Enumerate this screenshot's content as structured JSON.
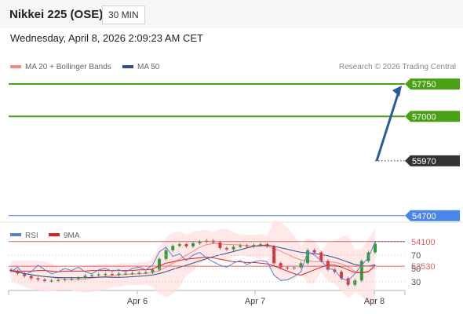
{
  "header": {
    "title": "Nikkei 225 (OSE)",
    "timeframe": "30 MIN"
  },
  "timestamp": "Wednesday, April 8, 2026 2:09:23 AM CET",
  "credit": "Research © 2026 Trading Central",
  "legend": [
    {
      "label": "MA 20 + Bollinger Bands",
      "color": "#f28b82"
    },
    {
      "label": "MA 50",
      "color": "#2d4f8a"
    }
  ],
  "rsi_legend": [
    {
      "label": "RSI",
      "color": "#5b7fd4"
    },
    {
      "label": "9MA",
      "color": "#e02020"
    }
  ],
  "colors": {
    "resistance": "#4aa116",
    "pivot": "#4a86e8",
    "support": "#e06666",
    "target_arrow": "#2a5aa0",
    "last_price": "#333333"
  },
  "chart_data": [
    {
      "type": "candlestick",
      "title": "Nikkei 225 (OSE)",
      "timeframe": "30 MIN",
      "x_ticks": [
        "Apr 6",
        "Apr 7",
        "Apr 8"
      ],
      "levels": [
        {
          "label": "57750",
          "value": 57750,
          "role": "resistance"
        },
        {
          "label": "57000",
          "value": 57000,
          "role": "resistance"
        },
        {
          "label": "55970",
          "value": 55970,
          "role": "last_price"
        },
        {
          "label": "54700",
          "value": 54700,
          "role": "pivot"
        },
        {
          "label": "54100",
          "value": 54100,
          "role": "support"
        },
        {
          "label": "53530",
          "value": 53530,
          "role": "support"
        }
      ],
      "price_close_approx": [
        53420,
        53360,
        53300,
        53250,
        53220,
        53190,
        53200,
        53210,
        53230,
        53240,
        53260,
        53310,
        53320,
        53340,
        53350,
        53330,
        53360,
        53360,
        53370,
        53380,
        53390,
        53450,
        53700,
        53900,
        54000,
        54040,
        53990,
        54060,
        54100,
        54120,
        54080,
        53950,
        53920,
        53980,
        54010,
        53990,
        54020,
        54040,
        53990,
        53600,
        53500,
        53480,
        53500,
        53600,
        53900,
        53850,
        53650,
        53450,
        53400,
        53250,
        53100,
        53200,
        53650,
        53850,
        54050
      ],
      "target": 57750
    },
    {
      "type": "line",
      "title": "RSI",
      "series": [
        {
          "name": "RSI",
          "values": [
            45,
            52,
            40,
            45,
            55,
            48,
            42,
            45,
            50,
            47,
            52,
            45,
            42,
            48,
            50,
            46,
            48,
            45,
            50,
            52,
            48,
            55,
            75,
            82,
            68,
            72,
            62,
            70,
            74,
            66,
            60,
            55,
            52,
            58,
            62,
            56,
            60,
            62,
            60,
            40,
            32,
            33,
            38,
            45,
            75,
            70,
            62,
            50,
            48,
            35,
            32,
            42,
            55,
            66,
            90
          ]
        },
        {
          "name": "9MA",
          "values": [
            47,
            46,
            46,
            46,
            47,
            47,
            46,
            45,
            46,
            46,
            46,
            46,
            47,
            47,
            47,
            47,
            47,
            47,
            47,
            48,
            48,
            49,
            54,
            58,
            60,
            62,
            64,
            65,
            66,
            67,
            66,
            64,
            62,
            60,
            60,
            59,
            59,
            58,
            57,
            54,
            50,
            46,
            42,
            40,
            44,
            48,
            52,
            55,
            55,
            52,
            48,
            44,
            43,
            45,
            55
          ]
        }
      ],
      "y_ticks": [
        70,
        50,
        30
      ],
      "ylim": [
        10,
        105
      ]
    }
  ]
}
